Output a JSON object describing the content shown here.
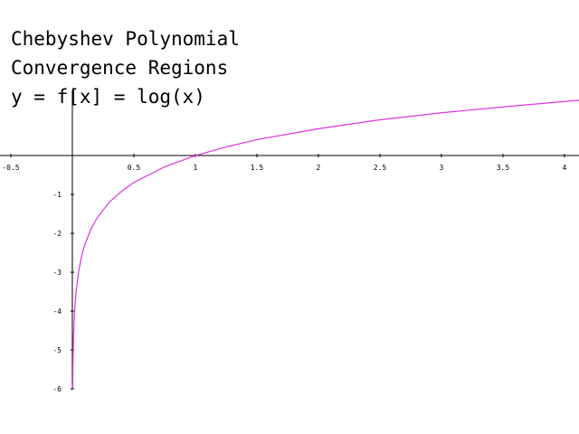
{
  "chart_data": {
    "type": "line",
    "title_lines": [
      "Chebyshev Polynomial",
      "Convergence Regions",
      "y = f[x] = log(x)"
    ],
    "x": [
      0.0025,
      0.005,
      0.01,
      0.02,
      0.03,
      0.05,
      0.075,
      0.1,
      0.15,
      0.2,
      0.3,
      0.4,
      0.5,
      0.75,
      1,
      1.25,
      1.5,
      2,
      2.5,
      3,
      3.5,
      4,
      4.118
    ],
    "series": [
      {
        "color": "#dd33dd",
        "values": [
          -5.99,
          -5.3,
          -4.61,
          -3.91,
          -3.51,
          -3.0,
          -2.59,
          -2.3,
          -1.9,
          -1.61,
          -1.2,
          -0.92,
          -0.69,
          -0.29,
          0,
          0.22,
          0.41,
          0.69,
          0.92,
          1.1,
          1.25,
          1.39,
          1.42
        ]
      }
    ],
    "xlim": [
      -0.588,
      4.118
    ],
    "ylim": [
      -7.16,
      4
    ],
    "xticks": [
      -0.5,
      0.5,
      1,
      1.5,
      2,
      2.5,
      3,
      3.5,
      4
    ],
    "yticks": [
      -1,
      -2,
      -3,
      -4,
      -5,
      -6
    ]
  }
}
